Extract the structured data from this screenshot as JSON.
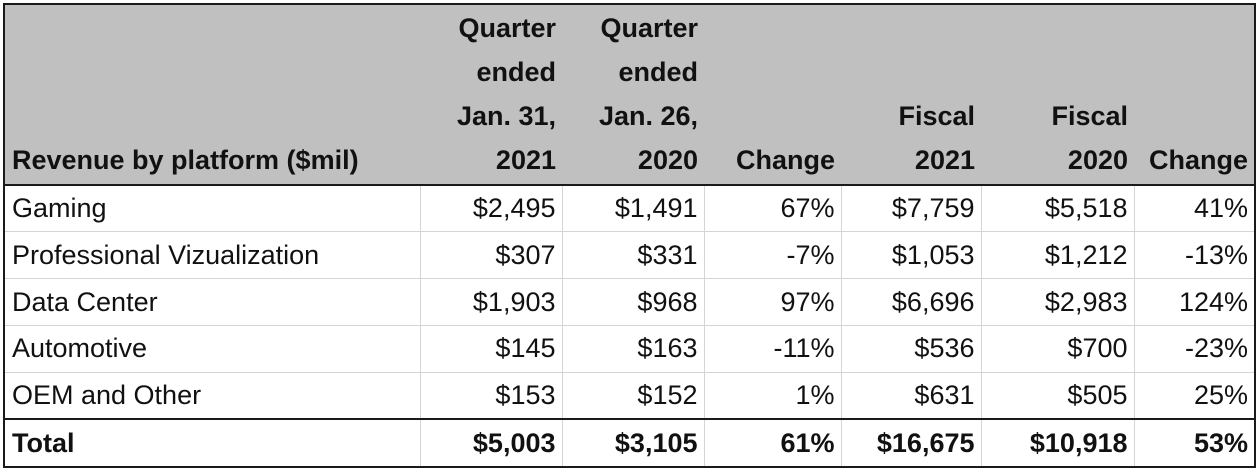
{
  "table": {
    "columns": [
      "Revenue by platform ($mil)",
      "Quarter\nended\nJan. 31,\n2021",
      "Quarter\nended\nJan. 26,\n2020",
      "Change",
      "Fiscal\n2021",
      "Fiscal\n2020",
      "Change"
    ],
    "rows": [
      {
        "platform": "Gaming",
        "q_2021": "$2,495",
        "q_2020": "$1,491",
        "q_change": "67%",
        "fy_2021": "$7,759",
        "fy_2020": "$5,518",
        "fy_change": "41%"
      },
      {
        "platform": "Professional Vizualization",
        "q_2021": "$307",
        "q_2020": "$331",
        "q_change": "-7%",
        "fy_2021": "$1,053",
        "fy_2020": "$1,212",
        "fy_change": "-13%"
      },
      {
        "platform": "Data Center",
        "q_2021": "$1,903",
        "q_2020": "$968",
        "q_change": "97%",
        "fy_2021": "$6,696",
        "fy_2020": "$2,983",
        "fy_change": "124%"
      },
      {
        "platform": "Automotive",
        "q_2021": "$145",
        "q_2020": "$163",
        "q_change": "-11%",
        "fy_2021": "$536",
        "fy_2020": "$700",
        "fy_change": "-23%"
      },
      {
        "platform": "OEM and Other",
        "q_2021": "$153",
        "q_2020": "$152",
        "q_change": "1%",
        "fy_2021": "$631",
        "fy_2020": "$505",
        "fy_change": "25%"
      }
    ],
    "total": {
      "platform": "Total",
      "q_2021": "$5,003",
      "q_2020": "$3,105",
      "q_change": "61%",
      "fy_2021": "$16,675",
      "fy_2020": "$10,918",
      "fy_change": "53%"
    }
  },
  "colors": {
    "header_background": "#c0c0c0",
    "border": "#1a1a1a",
    "gridline": "#d4d4d4"
  }
}
